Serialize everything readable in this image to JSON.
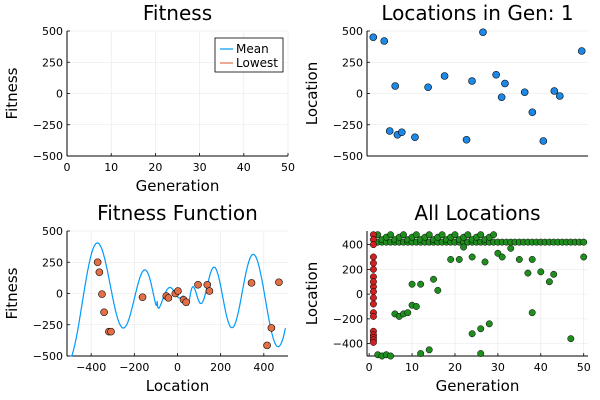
{
  "chart_data": [
    {
      "id": "fitness",
      "type": "line",
      "title": "Fitness",
      "xlabel": "Generation",
      "ylabel": "Fitness",
      "xlim": [
        0,
        50
      ],
      "ylim": [
        -500,
        500
      ],
      "xticks": [
        0,
        10,
        20,
        30,
        40,
        50
      ],
      "yticks": [
        -500,
        -250,
        0,
        250,
        500
      ],
      "grid": true,
      "legend_position": "top-right",
      "series": [
        {
          "name": "Mean",
          "color": "#009AFA",
          "values": []
        },
        {
          "name": "Lowest",
          "color": "#E36F47",
          "values": []
        }
      ]
    },
    {
      "id": "locations",
      "type": "scatter",
      "title": "Locations in Gen: 1",
      "xlabel": "",
      "ylabel": "Location",
      "ylim": [
        -500,
        500
      ],
      "yticks": [
        -500,
        -250,
        0,
        250,
        500
      ],
      "grid": true,
      "point_color": "#1E88E5",
      "points": [
        [
          1,
          450
        ],
        [
          2,
          420
        ],
        [
          2.5,
          -300
        ],
        [
          3,
          60
        ],
        [
          3.2,
          -330
        ],
        [
          3.6,
          -310
        ],
        [
          4.8,
          -350
        ],
        [
          6,
          50
        ],
        [
          7.5,
          140
        ],
        [
          9.5,
          -370
        ],
        [
          10,
          100
        ],
        [
          11,
          490
        ],
        [
          12.2,
          150
        ],
        [
          12.7,
          -30
        ],
        [
          13,
          80
        ],
        [
          14.8,
          10
        ],
        [
          15.5,
          -150
        ],
        [
          16.5,
          -380
        ],
        [
          17.5,
          20
        ],
        [
          18,
          -20
        ],
        [
          20,
          340
        ]
      ]
    },
    {
      "id": "fitness-function",
      "type": "line",
      "title": "Fitness Function",
      "xlabel": "Location",
      "ylabel": "Fitness",
      "xlim": [
        -512,
        512
      ],
      "ylim": [
        -500,
        500
      ],
      "xticks": [
        -400,
        -200,
        0,
        200,
        400
      ],
      "yticks": [
        -500,
        -250,
        0,
        250,
        500
      ],
      "grid": true,
      "line_color": "#009AFA",
      "marker_color": "#E36F47",
      "points": [
        [
          -370,
          250
        ],
        [
          -362,
          170
        ],
        [
          -350,
          -5
        ],
        [
          -340,
          -150
        ],
        [
          -318,
          -305
        ],
        [
          -308,
          -305
        ],
        [
          -162,
          -30
        ],
        [
          -52,
          -20
        ],
        [
          -42,
          -35
        ],
        [
          -10,
          0
        ],
        [
          2,
          20
        ],
        [
          28,
          -50
        ],
        [
          40,
          -70
        ],
        [
          95,
          70
        ],
        [
          138,
          70
        ],
        [
          148,
          20
        ],
        [
          343,
          85
        ],
        [
          415,
          -415
        ],
        [
          435,
          -275
        ],
        [
          470,
          90
        ]
      ]
    },
    {
      "id": "all-locations",
      "type": "scatter",
      "title": "All Locations",
      "xlabel": "Generation",
      "ylabel": "Location",
      "xlim": [
        -0.5,
        51
      ],
      "ylim": [
        -500,
        510
      ],
      "xticks": [
        0,
        10,
        20,
        30,
        40,
        50
      ],
      "yticks": [
        -400,
        -200,
        0,
        200,
        400
      ],
      "grid": true,
      "series": [
        {
          "name": "Gen 1",
          "color": "#D21F1F",
          "points": [
            [
              1,
              480
            ],
            [
              1,
              440
            ],
            [
              1,
              400
            ],
            [
              1,
              300
            ],
            [
              1,
              200
            ],
            [
              1,
              140
            ],
            [
              1,
              60
            ],
            [
              1,
              20
            ],
            [
              1,
              -30
            ],
            [
              1,
              -80
            ],
            [
              1,
              -150
            ],
            [
              1,
              -180
            ],
            [
              1,
              -300
            ],
            [
              1,
              -330
            ],
            [
              1,
              -350
            ],
            [
              1,
              -370
            ],
            [
              1,
              -390
            ],
            [
              1,
              100
            ],
            [
              1,
              250
            ]
          ]
        },
        {
          "name": "Later gens",
          "color": "#1F8E1F",
          "points": [
            [
              2,
              -490
            ],
            [
              3,
              -500
            ],
            [
              4,
              -490
            ],
            [
              5,
              -500
            ],
            [
              6,
              -160
            ],
            [
              7,
              -180
            ],
            [
              8,
              -160
            ],
            [
              9,
              -150
            ],
            [
              10,
              -90
            ],
            [
              10,
              80
            ],
            [
              11,
              -100
            ],
            [
              12,
              80
            ],
            [
              12,
              -480
            ],
            [
              14,
              -450
            ],
            [
              15,
              120
            ],
            [
              16,
              30
            ],
            [
              19,
              280
            ],
            [
              21,
              280
            ],
            [
              22,
              380
            ],
            [
              24,
              300
            ],
            [
              24,
              -320
            ],
            [
              26,
              -280
            ],
            [
              26,
              -480
            ],
            [
              27,
              260
            ],
            [
              28,
              -240
            ],
            [
              30,
              330
            ],
            [
              31,
              300
            ],
            [
              33,
              370
            ],
            [
              35,
              280
            ],
            [
              37,
              170
            ],
            [
              38,
              280
            ],
            [
              38,
              -150
            ],
            [
              40,
              180
            ],
            [
              42,
              100
            ],
            [
              43,
              160
            ],
            [
              47,
              -360
            ],
            [
              50,
              300
            ]
          ]
        }
      ]
    }
  ]
}
